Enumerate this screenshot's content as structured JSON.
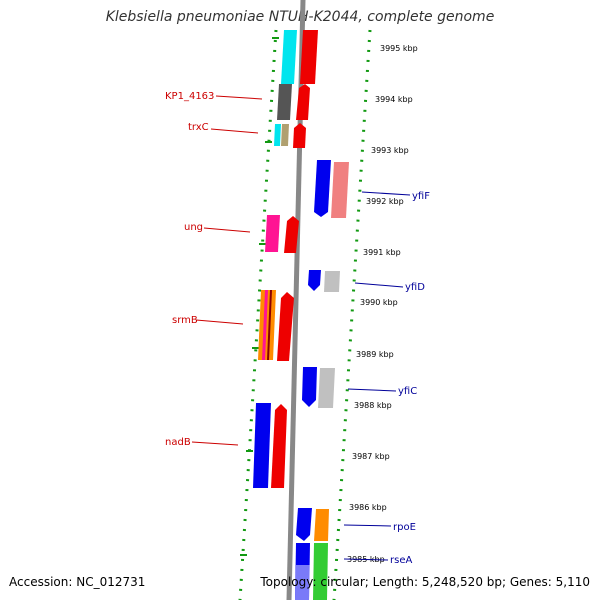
{
  "title": "Klebsiella pneumoniae NTUH-K2044, complete genome",
  "accession": "Accession: NC_012731",
  "topology": "Topology: circular; Length: 5,248,520 bp; Genes: 5,110",
  "ticks": [
    {
      "label": "3995 kbp"
    },
    {
      "label": "3994 kbp"
    },
    {
      "label": "3993 kbp"
    },
    {
      "label": "3992 kbp"
    },
    {
      "label": "3991 kbp"
    },
    {
      "label": "3990 kbp"
    },
    {
      "label": "3989 kbp"
    },
    {
      "label": "3988 kbp"
    },
    {
      "label": "3987 kbp"
    },
    {
      "label": "3986 kbp"
    },
    {
      "label": "3985 kbp"
    }
  ],
  "genes_left": [
    {
      "label": "KP1_4163"
    },
    {
      "label": "trxC"
    },
    {
      "label": "ung"
    },
    {
      "label": "srmB"
    },
    {
      "label": "nadB"
    }
  ],
  "genes_right": [
    {
      "label": "yfiF"
    },
    {
      "label": "yfiD"
    },
    {
      "label": "yfiC"
    },
    {
      "label": "rpoE"
    },
    {
      "label": "rseA"
    }
  ],
  "colors": {
    "left_label": "#cc0000",
    "right_label": "#000099",
    "backbone": "#888888",
    "dots": "#119911"
  }
}
